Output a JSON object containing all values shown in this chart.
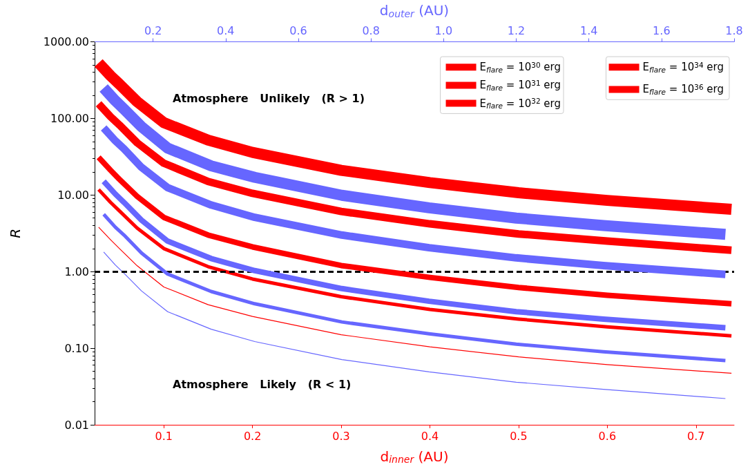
{
  "chart_data": {
    "type": "line",
    "xlabel": "d$_{inner}$ (AU)",
    "x2label": "d$_{outer}$ (AU)",
    "ylabel": "R",
    "annotations": [
      "Atmosphere   Unlikely   (R > 1)",
      "Atmosphere   Likely   (R < 1)"
    ],
    "x": [
      0.0265,
      0.04,
      0.05,
      0.07,
      0.1,
      0.15,
      0.2,
      0.3,
      0.4,
      0.5,
      0.6,
      0.74
    ],
    "series": [
      {
        "name": "E$_{flare}$ = 10$^{30}$ erg",
        "color": "#ff0000",
        "values": [
          3.8,
          2.6,
          2.0,
          1.19,
          0.63,
          0.37,
          0.26,
          0.15,
          0.104,
          0.077,
          0.061,
          0.047
        ]
      },
      {
        "color": "#6666ff",
        "axis": "x2",
        "x": [
          0.064,
          0.096,
          0.12,
          0.168,
          0.24,
          0.36,
          0.48,
          0.72,
          0.96,
          1.2,
          1.44,
          1.776
        ],
        "values": [
          1.8,
          1.22,
          0.95,
          0.56,
          0.3,
          0.177,
          0.122,
          0.071,
          0.049,
          0.036,
          0.029,
          0.022
        ]
      },
      {
        "name": "E$_{flare}$ = 10$^{31}$ erg",
        "color": "#ff0000",
        "values": [
          11.8,
          8.0,
          6.2,
          3.7,
          2.0,
          1.16,
          0.8,
          0.47,
          0.32,
          0.24,
          0.19,
          0.145
        ]
      },
      {
        "color": "#6666ff",
        "axis": "x2",
        "x": [
          0.064,
          0.096,
          0.12,
          0.168,
          0.24,
          0.36,
          0.48,
          0.72,
          0.96,
          1.2,
          1.44,
          1.776
        ],
        "values": [
          5.6,
          3.8,
          3.0,
          1.75,
          0.93,
          0.55,
          0.38,
          0.22,
          0.154,
          0.113,
          0.09,
          0.069
        ]
      },
      {
        "name": "E$_{flare}$ = 10$^{32}$ erg",
        "color": "#ff0000",
        "values": [
          31,
          21,
          16,
          9.6,
          5.1,
          3.0,
          2.1,
          1.2,
          0.84,
          0.62,
          0.49,
          0.38
        ]
      },
      {
        "color": "#6666ff",
        "axis": "x2",
        "x": [
          0.064,
          0.096,
          0.12,
          0.168,
          0.24,
          0.36,
          0.48,
          0.72,
          0.96,
          1.2,
          1.44,
          1.776
        ],
        "values": [
          15.1,
          10.3,
          8.0,
          4.7,
          2.5,
          1.48,
          1.03,
          0.6,
          0.41,
          0.3,
          0.24,
          0.185
        ]
      },
      {
        "name": "E$_{flare}$ = 10$^{34}$ erg",
        "color": "#ff0000",
        "values": [
          155,
          105,
          82,
          48,
          26,
          15,
          10.5,
          6.1,
          4.2,
          3.1,
          2.5,
          1.9
        ]
      },
      {
        "color": "#6666ff",
        "axis": "x2",
        "x": [
          0.064,
          0.096,
          0.12,
          0.168,
          0.24,
          0.36,
          0.48,
          0.72,
          0.96,
          1.2,
          1.44,
          1.776
        ],
        "values": [
          75,
          51,
          40,
          23,
          12.5,
          7.4,
          5.1,
          3.0,
          2.05,
          1.51,
          1.2,
          0.92
        ]
      },
      {
        "name": "E$_{flare}$ = 10$^{36}$ erg",
        "color": "#ff0000",
        "values": [
          530,
          360,
          280,
          165,
          88,
          52,
          36,
          21,
          14.5,
          10.7,
          8.5,
          6.5
        ]
      },
      {
        "color": "#6666ff",
        "axis": "x2",
        "x": [
          0.064,
          0.096,
          0.12,
          0.168,
          0.24,
          0.36,
          0.48,
          0.72,
          0.96,
          1.2,
          1.44,
          1.776
        ],
        "values": [
          250,
          170,
          132,
          78,
          41,
          24,
          17,
          9.9,
          6.8,
          5.0,
          4.0,
          3.06
        ]
      }
    ],
    "xlim": [
      0.022,
      0.743
    ],
    "xticks": [
      0.1,
      0.2,
      0.3,
      0.4,
      0.5,
      0.6,
      0.7
    ],
    "x2lim": [
      0.039,
      1.8
    ],
    "x2ticks": [
      0.2,
      0.4,
      0.6,
      0.8,
      {
        "value": 1,
        "label": "1.0"
      },
      1.2,
      1.4,
      1.6,
      1.8
    ],
    "ylim": [
      0.01,
      1000
    ],
    "yticks": [
      {
        "value": 0.01,
        "label": "0.01"
      },
      {
        "value": 0.1,
        "label": "0.10"
      },
      {
        "value": 1,
        "label": "1.00"
      },
      {
        "value": 10,
        "label": "10.00"
      },
      {
        "value": 100,
        "label": "100.00"
      },
      {
        "value": 1000,
        "label": "1000.00"
      }
    ],
    "log": "y",
    "ref_lines": [
      {
        "axis": "y",
        "value": 1,
        "color": "#000000",
        "line_style": "dashed"
      }
    ],
    "legend": "top right",
    "grid": false,
    "marker": "none",
    "line_style": "solid"
  }
}
